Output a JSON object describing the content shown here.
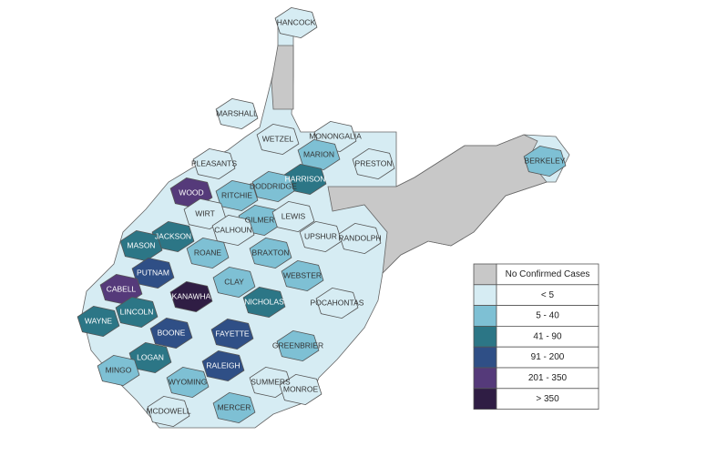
{
  "map": {
    "counties": [
      {
        "label": "HANCOCK",
        "color": "#d6ecf3"
      },
      {
        "label": "MARSHALL",
        "color": "#d6ecf3"
      },
      {
        "label": "WETZEL",
        "color": "#d6ecf3"
      },
      {
        "label": "MONONGALIA",
        "color": "#d6ecf3"
      },
      {
        "label": "PRESTON",
        "color": "#d6ecf3"
      },
      {
        "label": "MARION",
        "color": "#7ec0d4"
      },
      {
        "label": "HARRISON",
        "color": "#2c7686"
      },
      {
        "label": "PLEASANTS",
        "color": "#d6ecf3"
      },
      {
        "label": "WOOD",
        "color": "#553a7a"
      },
      {
        "label": "RITCHIE",
        "color": "#7ec0d4"
      },
      {
        "label": "DODDRIDGE",
        "color": "#7ec0d4"
      },
      {
        "label": "WIRT",
        "color": "#d6ecf3"
      },
      {
        "label": "GILMER",
        "color": "#7ec0d4"
      },
      {
        "label": "LEWIS",
        "color": "#d6ecf3"
      },
      {
        "label": "CALHOUN",
        "color": "#d6ecf3"
      },
      {
        "label": "UPSHUR",
        "color": "#d6ecf3"
      },
      {
        "label": "RANDOLPH",
        "color": "#d6ecf3"
      },
      {
        "label": "JACKSON",
        "color": "#2c7686"
      },
      {
        "label": "MASON",
        "color": "#2c7686"
      },
      {
        "label": "ROANE",
        "color": "#7ec0d4"
      },
      {
        "label": "BRAXTON",
        "color": "#7ec0d4"
      },
      {
        "label": "WEBSTER",
        "color": "#7ec0d4"
      },
      {
        "label": "CLAY",
        "color": "#7ec0d4"
      },
      {
        "label": "PUTNAM",
        "color": "#2f4f86"
      },
      {
        "label": "CABELL",
        "color": "#553a7a"
      },
      {
        "label": "KANAWHA",
        "color": "#2f1d44"
      },
      {
        "label": "NICHOLAS",
        "color": "#2c7686"
      },
      {
        "label": "POCAHONTAS",
        "color": "#d6ecf3"
      },
      {
        "label": "WAYNE",
        "color": "#2c7686"
      },
      {
        "label": "LINCOLN",
        "color": "#2c7686"
      },
      {
        "label": "BOONE",
        "color": "#2f4f86"
      },
      {
        "label": "FAYETTE",
        "color": "#2f4f86"
      },
      {
        "label": "GREENBRIER",
        "color": "#7ec0d4"
      },
      {
        "label": "LOGAN",
        "color": "#2c7686"
      },
      {
        "label": "MINGO",
        "color": "#7ec0d4"
      },
      {
        "label": "RALEIGH",
        "color": "#2f4f86"
      },
      {
        "label": "WYOMING",
        "color": "#7ec0d4"
      },
      {
        "label": "SUMMERS",
        "color": "#d6ecf3"
      },
      {
        "label": "MONROE",
        "color": "#d6ecf3"
      },
      {
        "label": "MCDOWELL",
        "color": "#d6ecf3"
      },
      {
        "label": "MERCER",
        "color": "#7ec0d4"
      },
      {
        "label": "BERKELEY",
        "color": "#7ec0d4"
      }
    ],
    "legend": [
      {
        "label": "No Confirmed Cases",
        "color": "#c8c8c8"
      },
      {
        "label": "< 5",
        "color": "#d6ecf3"
      },
      {
        "label": "5 - 40",
        "color": "#7ec0d4"
      },
      {
        "label": "41 - 90",
        "color": "#2c7686"
      },
      {
        "label": "91 - 200",
        "color": "#2f4f86"
      },
      {
        "label": "201 - 350",
        "color": "#553a7a"
      },
      {
        "label": "> 350",
        "color": "#2f1d44"
      }
    ]
  }
}
